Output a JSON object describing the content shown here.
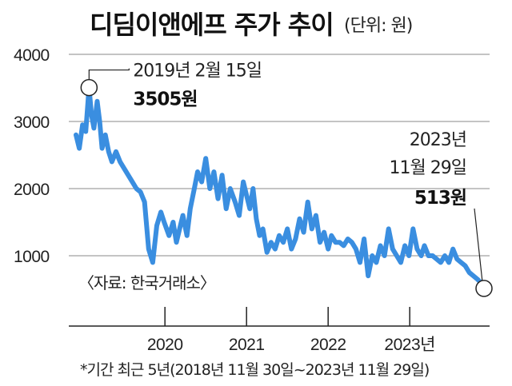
{
  "title": "디딤이앤에프 주가 추이",
  "unit": "(단위: 원)",
  "source": "〈자료: 한국거래소〉",
  "footnote": "*기간 최근 5년(2018년 11월 30일~2023년 11월 29일)",
  "colors": {
    "line": "#3a8ee0",
    "text": "#222222",
    "grid": "#888888"
  },
  "chart_data": {
    "type": "line",
    "title": "디딤이앤에프 주가 추이",
    "ylabel": "(단위: 원)",
    "ylim": [
      0,
      4000
    ],
    "yticks": [
      {
        "value": 1000,
        "label": "1000"
      },
      {
        "value": 2000,
        "label": "2000"
      },
      {
        "value": 3000,
        "label": "3000"
      },
      {
        "value": 4000,
        "label": "4000"
      }
    ],
    "xlim": [
      2018.91,
      2023.91
    ],
    "xticks": [
      {
        "value": 2020,
        "label": "2020"
      },
      {
        "value": 2021,
        "label": "2021"
      },
      {
        "value": 2022,
        "label": "2022"
      },
      {
        "value": 2023,
        "label": "2023년"
      }
    ],
    "grid": true,
    "series": [
      {
        "x": [
          2018.91,
          2018.95,
          2018.99,
          2019.03,
          2019.07,
          2019.1,
          2019.13,
          2019.17,
          2019.2,
          2019.23,
          2019.27,
          2019.31,
          2019.35,
          2019.4,
          2019.45,
          2019.5,
          2019.55,
          2019.6,
          2019.65,
          2019.7,
          2019.75,
          2019.8,
          2019.85,
          2019.9,
          2019.95,
          2019.99,
          2020.05,
          2020.1,
          2020.14,
          2020.18,
          2020.22,
          2020.27,
          2020.31,
          2020.36,
          2020.4,
          2020.45,
          2020.5,
          2020.55,
          2020.6,
          2020.65,
          2020.7,
          2020.75,
          2020.8,
          2020.86,
          2020.91,
          2020.96,
          2021.0,
          2021.04,
          2021.08,
          2021.12,
          2021.16,
          2021.2,
          2021.25,
          2021.3,
          2021.35,
          2021.4,
          2021.45,
          2021.5,
          2021.55,
          2021.6,
          2021.65,
          2021.7,
          2021.75,
          2021.8,
          2021.85,
          2021.9,
          2021.95,
          2022.0,
          2022.04,
          2022.09,
          2022.14,
          2022.19,
          2022.24,
          2022.29,
          2022.34,
          2022.39,
          2022.44,
          2022.49,
          2022.54,
          2022.59,
          2022.64,
          2022.69,
          2022.74,
          2022.79,
          2022.84,
          2022.89,
          2022.94,
          2022.99,
          2023.04,
          2023.09,
          2023.14,
          2023.18,
          2023.23,
          2023.28,
          2023.33,
          2023.38,
          2023.43,
          2023.48,
          2023.53,
          2023.58,
          2023.63,
          2023.68,
          2023.73,
          2023.78,
          2023.83,
          2023.87,
          2023.91
        ],
        "y": [
          2800,
          2600,
          2950,
          2850,
          3505,
          3100,
          2900,
          3300,
          3000,
          2600,
          2800,
          2550,
          2400,
          2550,
          2400,
          2300,
          2200,
          2100,
          2000,
          1950,
          1800,
          1100,
          900,
          1450,
          1650,
          1500,
          1300,
          1500,
          1200,
          1400,
          1600,
          1300,
          1700,
          2000,
          2250,
          2100,
          2450,
          2000,
          2250,
          1850,
          2200,
          1700,
          2000,
          1800,
          1600,
          2100,
          1900,
          1700,
          2000,
          1550,
          1300,
          1400,
          1050,
          1200,
          1100,
          1300,
          1200,
          1400,
          1100,
          1250,
          1550,
          1350,
          1800,
          1400,
          1600,
          1200,
          1350,
          1100,
          1300,
          1200,
          1200,
          1150,
          1250,
          1200,
          1100,
          900,
          1250,
          700,
          1000,
          900,
          1150,
          1000,
          1400,
          1100,
          1000,
          900,
          1150,
          1000,
          1400,
          1100,
          1000,
          1150,
          1000,
          1000,
          950,
          900,
          1000,
          900,
          1100,
          950,
          900,
          850,
          750,
          700,
          650,
          600,
          513
        ]
      }
    ],
    "annotations": [
      {
        "x": 2019.07,
        "y": 3505,
        "date": "2019년 2월 15일",
        "value": "3505원"
      },
      {
        "x": 2023.91,
        "y": 513,
        "date_line1": "2023년",
        "date_line2": "11월 29일",
        "value": "513원"
      }
    ]
  }
}
